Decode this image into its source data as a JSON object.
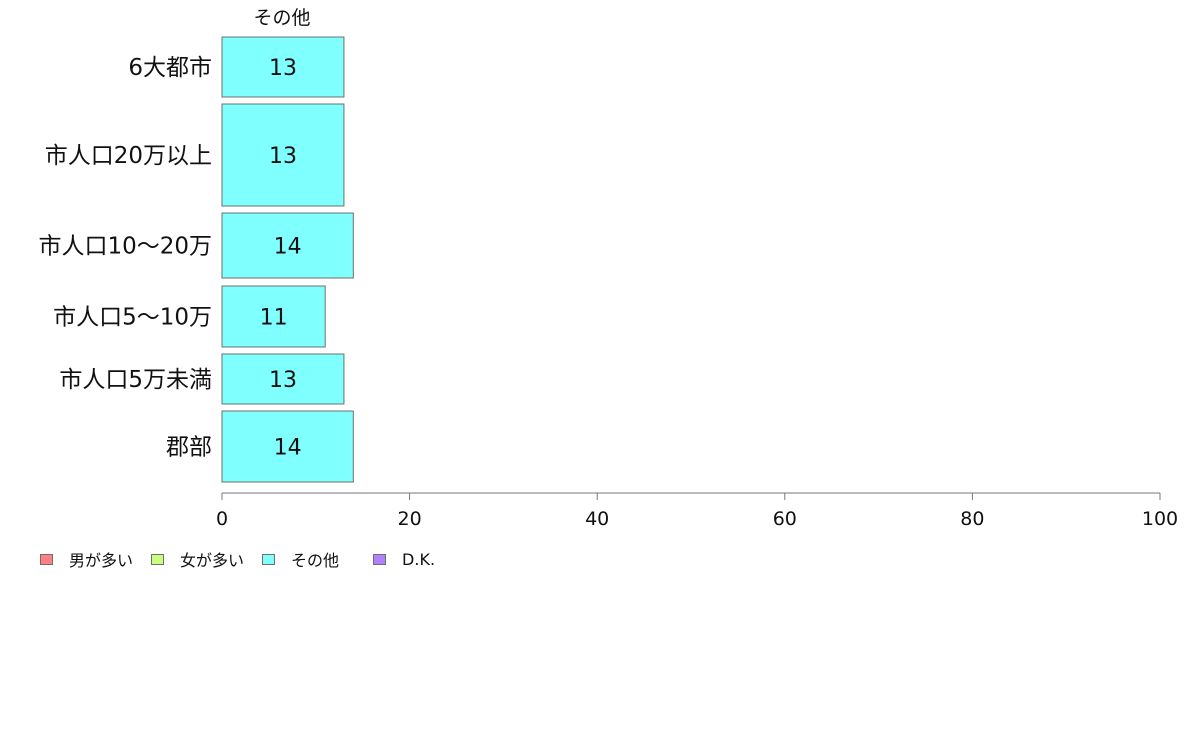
{
  "chart_data": {
    "type": "bar",
    "orientation": "horizontal",
    "series_title": "その他",
    "categories": [
      "6大都市",
      "市人口20万以上",
      "市人口10〜20万",
      "市人口5〜10万",
      "市人口5万未満",
      "郡部"
    ],
    "series": [
      {
        "name": "その他",
        "color": "#80ffff",
        "values": [
          13,
          13,
          14,
          11,
          13,
          14
        ]
      }
    ],
    "data_labels": [
      "13",
      "13",
      "14",
      "11",
      "13",
      "14"
    ],
    "xlim": [
      0,
      100
    ],
    "x_ticks": [
      0,
      20,
      40,
      60,
      80,
      100
    ],
    "x_tick_labels": [
      "0",
      "20",
      "40",
      "60",
      "80",
      "100"
    ],
    "grid": false,
    "legend_position": "bottom-left",
    "legend": [
      {
        "label": "男が多い",
        "color": "#ff8080"
      },
      {
        "label": "女が多い",
        "color": "#c8ff80"
      },
      {
        "label": "その他",
        "color": "#80ffff"
      },
      {
        "label": "D.K.",
        "color": "#b080ff"
      }
    ]
  }
}
